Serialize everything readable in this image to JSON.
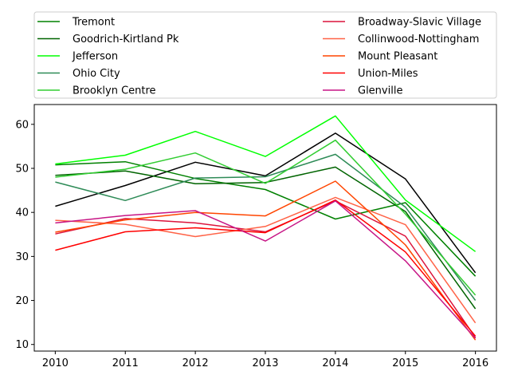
{
  "chart_data": {
    "type": "line",
    "title": "",
    "xlabel": "",
    "ylabel": "",
    "x": [
      2010,
      2011,
      2012,
      2013,
      2014,
      2015,
      2016
    ],
    "xlim": [
      2009.7,
      2016.3
    ],
    "ylim": [
      8.5,
      64.5
    ],
    "y_ticks": [
      10,
      20,
      30,
      40,
      50,
      60
    ],
    "grid": false,
    "legend_position": "top (above plot, two columns)",
    "series": [
      {
        "name": "",
        "color": "#000000",
        "values": [
          41.4,
          46.1,
          51.4,
          48.3,
          58.0,
          47.6,
          26.3
        ]
      },
      {
        "name": "Tremont",
        "color": "#008000",
        "values": [
          50.8,
          51.5,
          47.7,
          45.2,
          38.5,
          42.2,
          25.5
        ]
      },
      {
        "name": "Goodrich-Kirtland Pk",
        "color": "#006400",
        "values": [
          48.4,
          49.4,
          46.5,
          46.8,
          50.3,
          40.2,
          18.1
        ]
      },
      {
        "name": "Jefferson",
        "color": "#00ff00",
        "values": [
          51.0,
          53.0,
          58.4,
          52.7,
          61.9,
          42.8,
          31.1
        ]
      },
      {
        "name": "Ohio City",
        "color": "#2e8b57",
        "values": [
          46.9,
          42.7,
          47.8,
          48.1,
          53.2,
          41.2,
          20.0
        ]
      },
      {
        "name": "Brooklyn Centre",
        "color": "#32cd32",
        "values": [
          48.0,
          49.8,
          53.5,
          46.6,
          56.4,
          39.6,
          21.2
        ]
      },
      {
        "name": "Broadway-Slavic Village",
        "color": "#dc143c",
        "values": [
          35.1,
          38.6,
          37.6,
          35.6,
          42.6,
          34.6,
          11.6
        ]
      },
      {
        "name": "Collinwood-Nottingham",
        "color": "#ff6347",
        "values": [
          38.2,
          37.3,
          34.5,
          36.8,
          43.4,
          37.2,
          14.9
        ]
      },
      {
        "name": "Mount Pleasant",
        "color": "#ff4500",
        "values": [
          35.5,
          38.3,
          40.0,
          39.2,
          47.1,
          32.6,
          11.0
        ]
      },
      {
        "name": "Union-Miles",
        "color": "#ff0000",
        "values": [
          31.4,
          35.6,
          36.5,
          35.4,
          42.8,
          31.0,
          11.9
        ]
      },
      {
        "name": "Glenville",
        "color": "#c71585",
        "values": [
          37.6,
          39.3,
          40.4,
          33.5,
          42.6,
          29.0,
          11.4
        ]
      }
    ]
  }
}
